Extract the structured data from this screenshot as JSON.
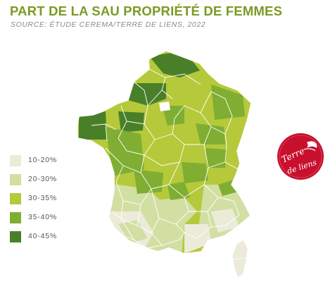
{
  "title": "PART DE LA SAU PROPRIÉTÉ DE FEMMES",
  "source": "SOURCE: ÉTUDE CEREMA/TERRE DE LIENS, 2022",
  "legend": [
    {
      "label": "10-20%",
      "color": "#ecebd9"
    },
    {
      "label": "20-30%",
      "color": "#d2dfa3"
    },
    {
      "label": "30-35%",
      "color": "#b5c93a"
    },
    {
      "label": "35-40%",
      "color": "#7fae32"
    },
    {
      "label": "40-45%",
      "color": "#4a7f2a"
    }
  ],
  "logo": {
    "line1": "Terre",
    "line2": "de liens",
    "color": "#c8102e"
  }
}
